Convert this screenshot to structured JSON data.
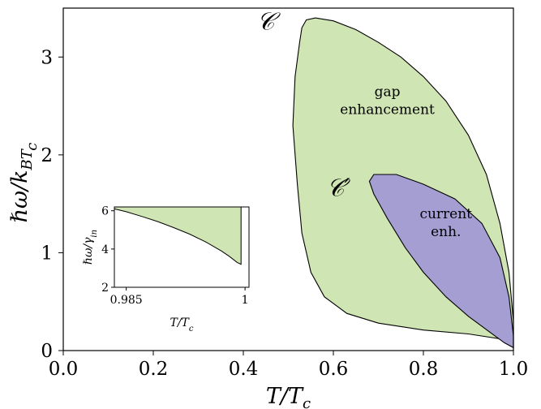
{
  "chart_data": [
    {
      "type": "area",
      "xlabel": "T/T_c",
      "ylabel": "ℏω/k_BT_c",
      "xlim": [
        0.0,
        1.0
      ],
      "ylim": [
        0,
        3.5
      ],
      "x_ticks": [
        0.0,
        0.2,
        0.4,
        0.6,
        0.8,
        1.0
      ],
      "y_ticks": [
        0,
        1,
        2,
        3
      ],
      "x_tick_labels": [
        "0.0",
        "0.2",
        "0.4",
        "0.6",
        "0.8",
        "1.0"
      ],
      "y_tick_labels": [
        "0",
        "1",
        "2",
        "3"
      ],
      "grid": false,
      "curve_labels": [
        {
          "text": "𝒞",
          "x": 0.43,
          "y": 3.28
        },
        {
          "text": "𝒞′",
          "x": 0.585,
          "y": 1.58
        }
      ],
      "region_labels": [
        {
          "lines": [
            "gap",
            "enhancement"
          ],
          "x": 0.72,
          "y": 2.6
        },
        {
          "lines": [
            "current",
            "enh."
          ],
          "x": 0.85,
          "y": 1.35
        }
      ],
      "series": [
        {
          "role": "gap-enhancement",
          "color": "#cfe5b4",
          "points": [
            [
              0.53,
              3.3
            ],
            [
              0.54,
              3.38
            ],
            [
              0.56,
              3.4
            ],
            [
              0.6,
              3.37
            ],
            [
              0.65,
              3.28
            ],
            [
              0.7,
              3.15
            ],
            [
              0.75,
              3.0
            ],
            [
              0.8,
              2.8
            ],
            [
              0.85,
              2.55
            ],
            [
              0.9,
              2.2
            ],
            [
              0.94,
              1.8
            ],
            [
              0.97,
              1.3
            ],
            [
              0.99,
              0.8
            ],
            [
              1.0,
              0.3
            ],
            [
              1.0,
              0.03
            ],
            [
              0.97,
              0.12
            ],
            [
              0.9,
              0.17
            ],
            [
              0.8,
              0.21
            ],
            [
              0.7,
              0.28
            ],
            [
              0.63,
              0.38
            ],
            [
              0.58,
              0.55
            ],
            [
              0.55,
              0.8
            ],
            [
              0.53,
              1.2
            ],
            [
              0.52,
              1.7
            ],
            [
              0.51,
              2.3
            ],
            [
              0.515,
              2.8
            ],
            [
              0.525,
              3.15
            ],
            [
              0.53,
              3.3
            ]
          ]
        },
        {
          "role": "current-enhancement",
          "color": "#a59ed3",
          "points": [
            [
              0.68,
              1.73
            ],
            [
              0.69,
              1.8
            ],
            [
              0.74,
              1.8
            ],
            [
              0.8,
              1.7
            ],
            [
              0.87,
              1.55
            ],
            [
              0.93,
              1.3
            ],
            [
              0.97,
              0.95
            ],
            [
              0.99,
              0.55
            ],
            [
              1.0,
              0.15
            ],
            [
              1.0,
              0.03
            ],
            [
              0.98,
              0.08
            ],
            [
              0.95,
              0.18
            ],
            [
              0.9,
              0.35
            ],
            [
              0.85,
              0.55
            ],
            [
              0.8,
              0.8
            ],
            [
              0.76,
              1.05
            ],
            [
              0.72,
              1.35
            ],
            [
              0.69,
              1.6
            ],
            [
              0.68,
              1.73
            ]
          ]
        }
      ]
    },
    {
      "type": "area",
      "role": "inset",
      "xlabel": "T/T_c",
      "ylabel": "ℏω/γ_in",
      "xlim": [
        0.9835,
        1.0005
      ],
      "ylim": [
        2,
        6.2
      ],
      "x_ticks": [
        0.985,
        1.0
      ],
      "y_ticks": [
        2,
        4,
        6
      ],
      "x_tick_labels": [
        "0.985",
        "1"
      ],
      "y_tick_labels": [
        "2",
        "4",
        "6"
      ],
      "series": [
        {
          "role": "gap-enhancement",
          "color": "#cfe5b4",
          "points": [
            [
              0.9835,
              6.1
            ],
            [
              0.985,
              5.95
            ],
            [
              0.987,
              5.7
            ],
            [
              0.989,
              5.43
            ],
            [
              0.991,
              5.12
            ],
            [
              0.993,
              4.78
            ],
            [
              0.995,
              4.38
            ],
            [
              0.997,
              3.9
            ],
            [
              0.998,
              3.62
            ],
            [
              0.999,
              3.3
            ],
            [
              0.9995,
              3.2
            ],
            [
              0.9995,
              6.2
            ],
            [
              0.9835,
              6.2
            ]
          ]
        }
      ]
    }
  ]
}
